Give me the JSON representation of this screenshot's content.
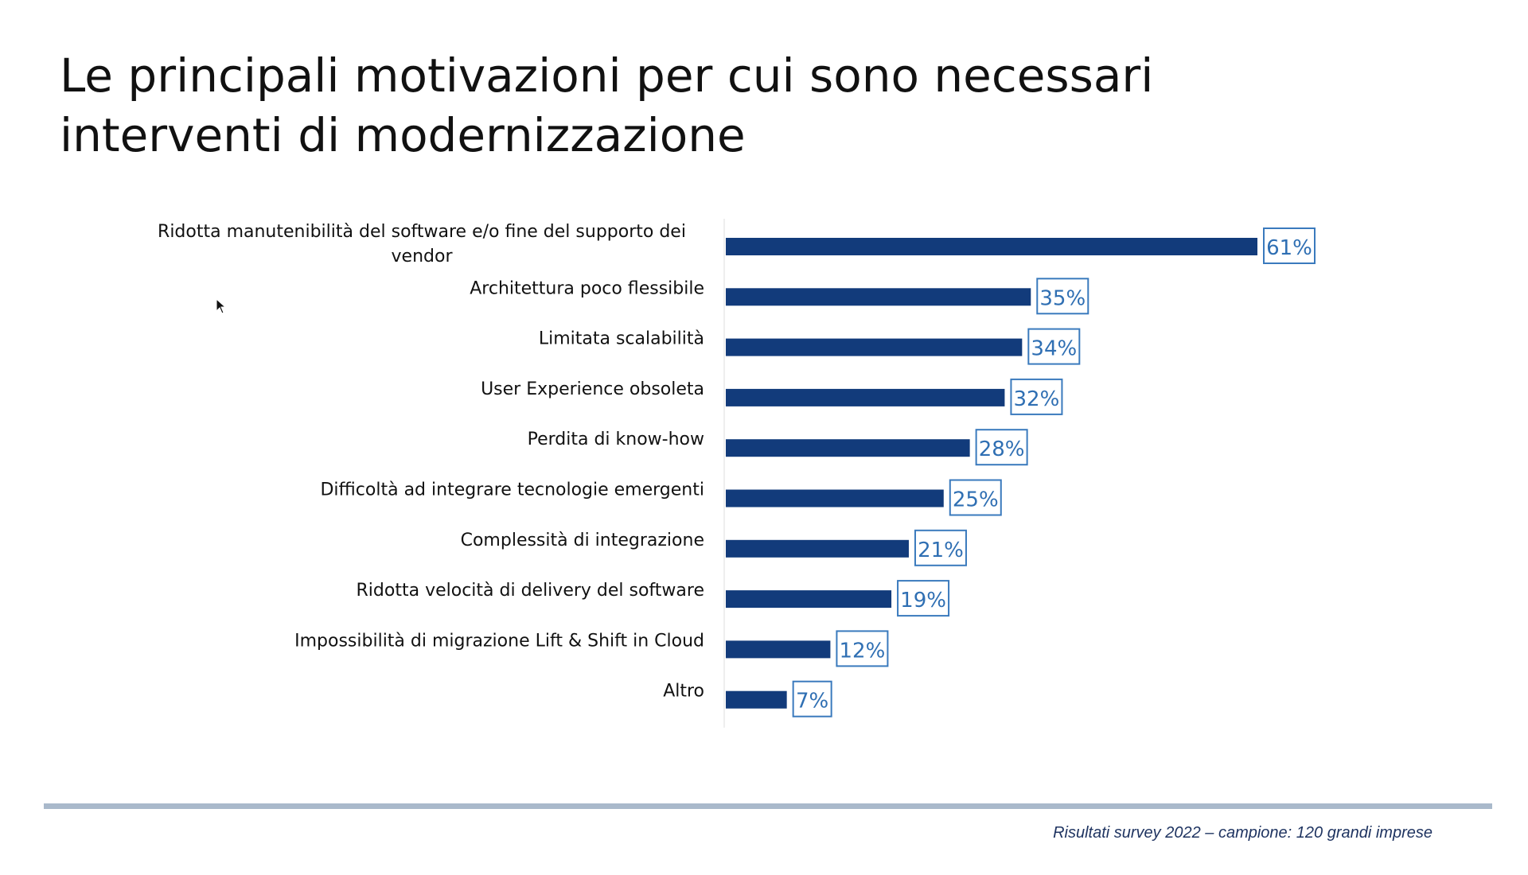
{
  "slide": {
    "title_line1": "Le principali motivazioni per cui sono necessari",
    "title_line2": "interventi di modernizzazione",
    "footnote": "Risultati survey 2022 – campione: 120 grandi imprese"
  },
  "colors": {
    "bar": "#123b7b",
    "label_border": "#3a7abd",
    "label_text": "#2f6fb3",
    "axis": "#dcdcdc",
    "category_text": "#111111",
    "footer_rule": "#a9b9cb",
    "footer_text": "#1f3461"
  },
  "icons": {
    "cursor": "mouse-pointer-icon"
  },
  "chart_data": {
    "type": "bar",
    "orientation": "horizontal",
    "value_format": "percent",
    "xlim": [
      0,
      61
    ],
    "grid": false,
    "legend": "none",
    "categories": [
      [
        "Ridotta manutenibilità del software e/o fine del supporto dei",
        "vendor"
      ],
      [
        "Architettura poco flessibile"
      ],
      [
        "Limitata scalabilità"
      ],
      [
        "User Experience obsoleta"
      ],
      [
        "Perdita di know-how"
      ],
      [
        "Difficoltà ad integrare tecnologie emergenti"
      ],
      [
        "Complessità di integrazione"
      ],
      [
        "Ridotta velocità di delivery del software"
      ],
      [
        "Impossibilità di migrazione Lift & Shift in Cloud"
      ],
      [
        "Altro"
      ]
    ],
    "values": [
      61,
      35,
      34,
      32,
      28,
      25,
      21,
      19,
      12,
      7
    ],
    "data_labels": [
      "61%",
      "35%",
      "34%",
      "32%",
      "28%",
      "25%",
      "21%",
      "19%",
      "12%",
      "7%"
    ]
  }
}
